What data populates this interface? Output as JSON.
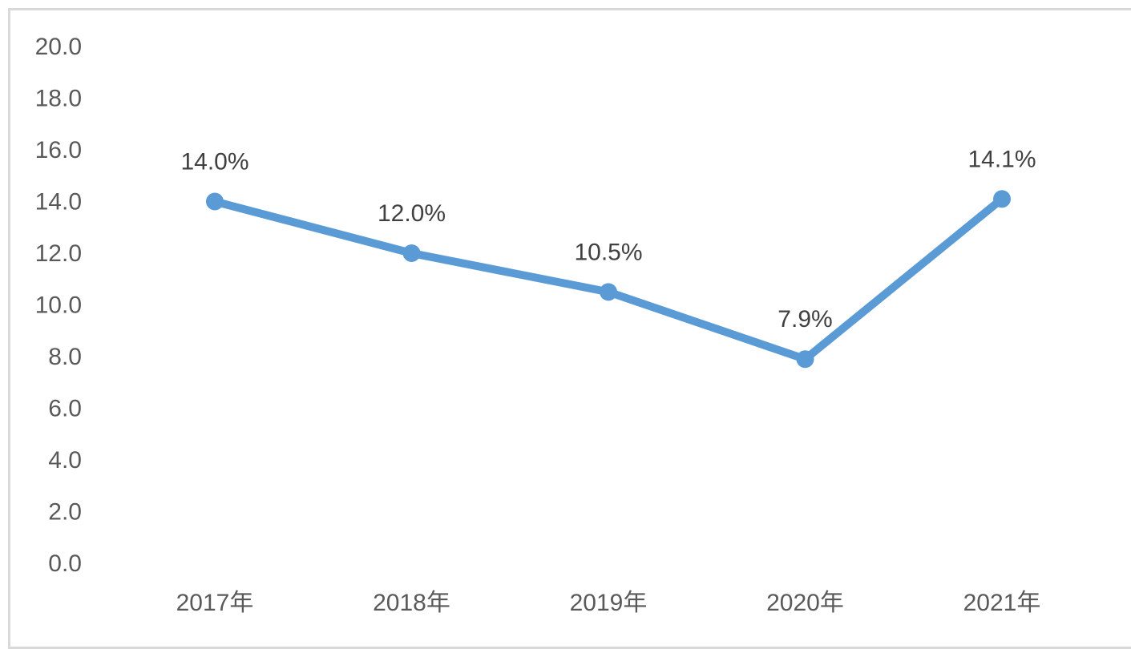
{
  "chart_data": {
    "type": "line",
    "categories": [
      "2017年",
      "2018年",
      "2019年",
      "2020年",
      "2021年"
    ],
    "series": [
      {
        "values": [
          14.0,
          12.0,
          10.5,
          7.9,
          14.1
        ]
      }
    ],
    "data_labels": [
      "14.0%",
      "12.0%",
      "10.5%",
      "7.9%",
      "14.1%"
    ],
    "y_ticks": [
      "0.0",
      "2.0",
      "4.0",
      "6.0",
      "8.0",
      "10.0",
      "12.0",
      "14.0",
      "16.0",
      "18.0",
      "20.0"
    ],
    "ylim": [
      0,
      20
    ],
    "grid": false,
    "legend": "none",
    "colors": {
      "line": "#5b9bd5",
      "marker": "#5b9bd5"
    }
  }
}
